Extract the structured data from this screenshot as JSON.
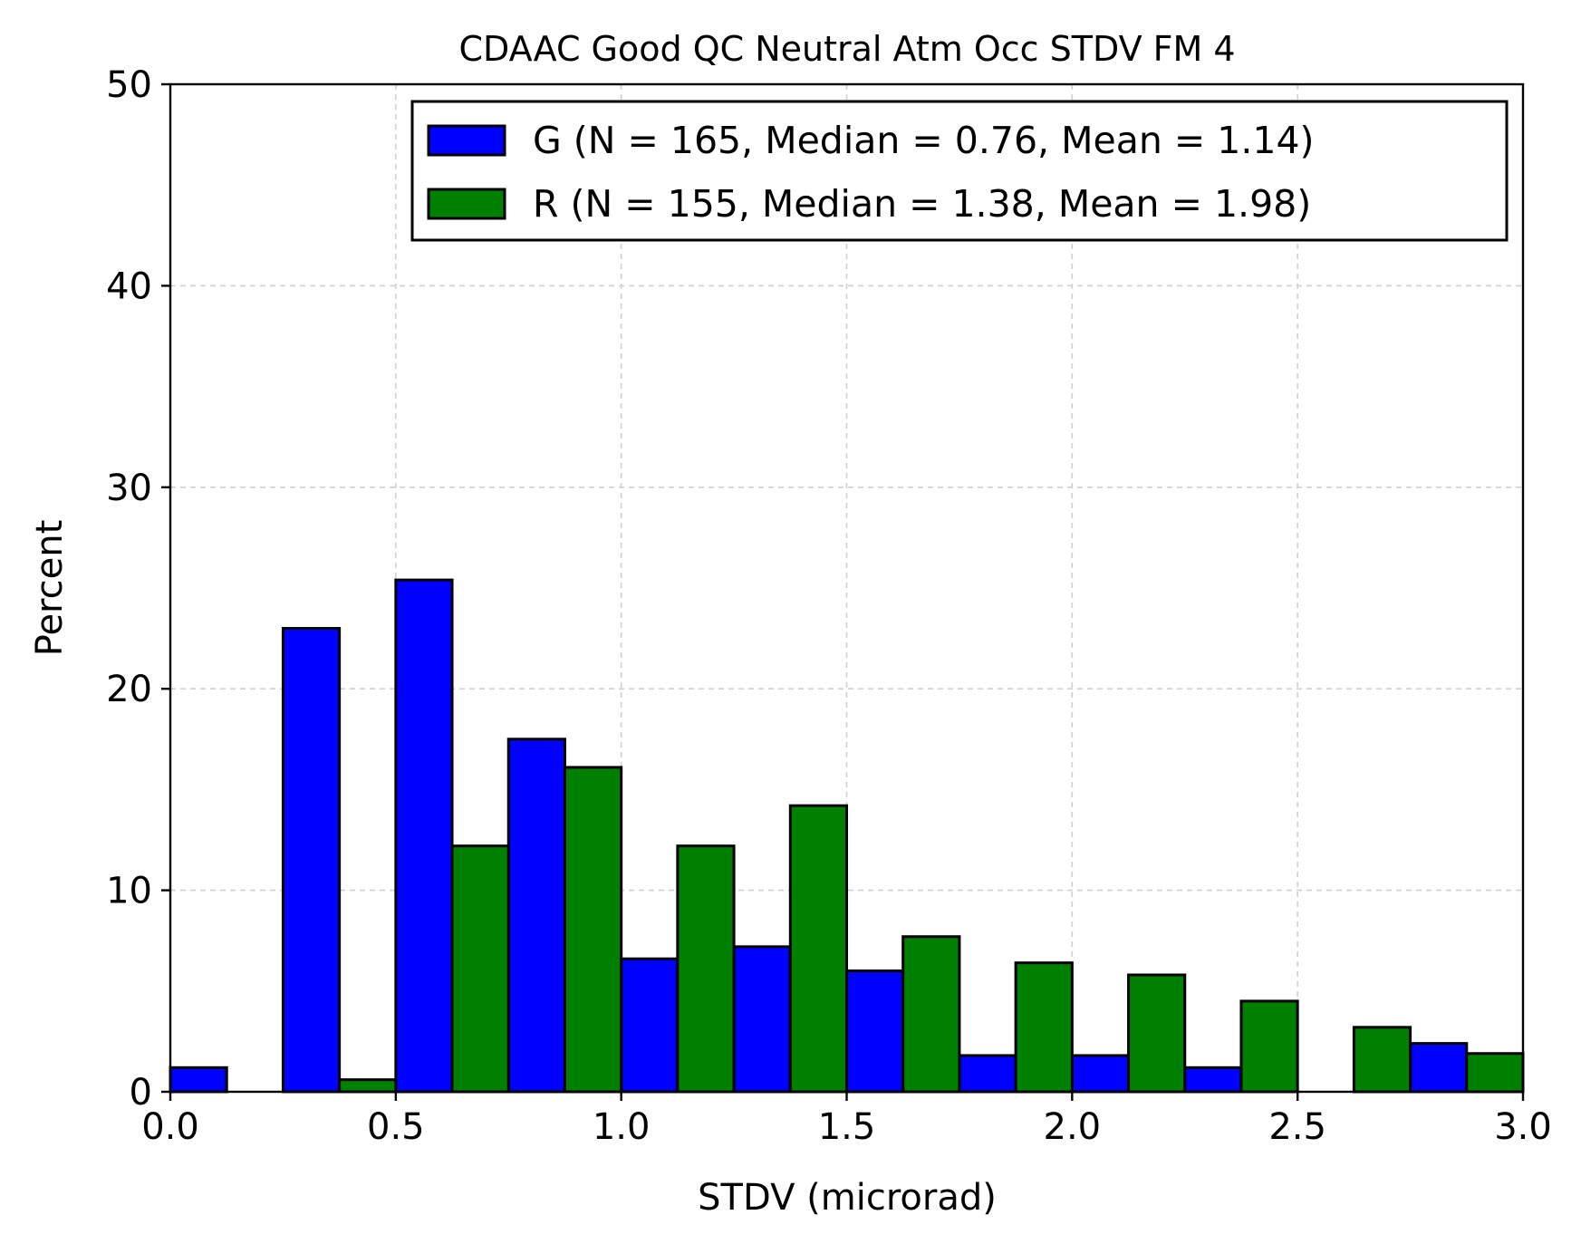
{
  "chart_data": {
    "type": "bar",
    "title": "CDAAC Good QC Neutral Atm Occ STDV FM 4",
    "xlabel": "STDV (microrad)",
    "ylabel": "Percent",
    "xlim": [
      0.0,
      3.0
    ],
    "ylim": [
      0,
      50
    ],
    "xticks": [
      "0.0",
      "0.5",
      "1.0",
      "1.5",
      "2.0",
      "2.5",
      "3.0"
    ],
    "yticks": [
      "0",
      "10",
      "20",
      "30",
      "40",
      "50"
    ],
    "grid": true,
    "legend_position": "top-right",
    "bin_edges": [
      0.0,
      0.25,
      0.5,
      0.75,
      1.0,
      1.25,
      1.5,
      1.75,
      2.0,
      2.25,
      2.5,
      2.75,
      3.0
    ],
    "series": [
      {
        "name": "G (N = 165, Median = 0.76, Mean = 1.14)",
        "color": "#0000ff",
        "values": [
          1.2,
          23.0,
          25.4,
          17.5,
          6.6,
          7.2,
          6.0,
          1.8,
          1.8,
          1.2,
          0.0,
          2.4
        ]
      },
      {
        "name": "R (N = 155, Median = 1.38, Mean = 1.98)",
        "color": "#008000",
        "values": [
          0.0,
          0.6,
          12.2,
          16.1,
          12.2,
          14.2,
          7.7,
          6.4,
          5.8,
          4.5,
          3.2,
          1.9
        ]
      }
    ]
  }
}
